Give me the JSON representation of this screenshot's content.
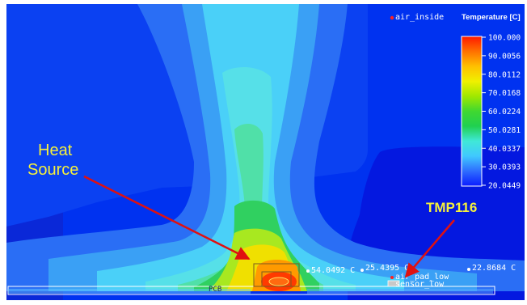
{
  "legend": {
    "title": "Temperature [C]",
    "ticks": [
      "100.000",
      "90.0056",
      "80.0112",
      "70.0168",
      "60.0224",
      "50.0281",
      "40.0337",
      "30.0393",
      "20.0449"
    ],
    "colors": [
      "#ff2a00",
      "#ff8c00",
      "#ffd000",
      "#d8f000",
      "#80e000",
      "#20d040",
      "#30d8a0",
      "#40d8f0",
      "#48a8ff",
      "#1a4dff"
    ]
  },
  "probes": {
    "air_inside": "air_inside",
    "t1": "54.0492 C",
    "t2": "25.4395 C",
    "t3": "22.8684 C",
    "air_pad": "air_pad_low",
    "sensor": "sensor_low",
    "partial": "PCB"
  },
  "callouts": {
    "heat_line1": "Heat",
    "heat_line2": "Source",
    "tmp": "TMP116"
  },
  "colors": {
    "background_blue": "#0032f0",
    "callout_yellow": "#f5f03c",
    "arrow_red": "#e01010"
  }
}
